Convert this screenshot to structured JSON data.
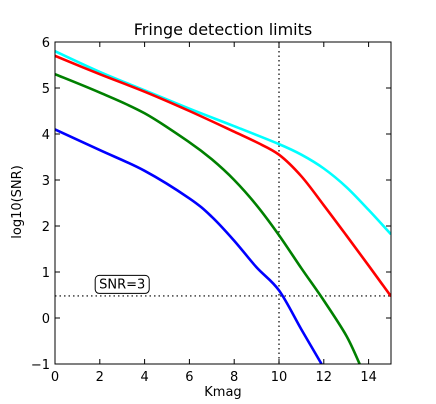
{
  "chart_data": {
    "type": "line",
    "title": "Fringe detection limits",
    "xlabel": "Kmag",
    "ylabel": "log10(SNR)",
    "xlim": [
      0,
      15
    ],
    "ylim": [
      -1,
      6
    ],
    "xticks": [
      0,
      2,
      4,
      6,
      8,
      10,
      12,
      14
    ],
    "yticks": [
      -1,
      0,
      1,
      2,
      3,
      4,
      5,
      6
    ],
    "grid": false,
    "series": [
      {
        "color": "#00ffff",
        "x": [
          0,
          2,
          4,
          6,
          8,
          10,
          11,
          12,
          13,
          14,
          15
        ],
        "y": [
          5.8,
          5.35,
          4.95,
          4.55,
          4.17,
          3.78,
          3.55,
          3.25,
          2.85,
          2.35,
          1.82
        ]
      },
      {
        "color": "#ff0000",
        "x": [
          0,
          2,
          4,
          6,
          8,
          9,
          10,
          11,
          12,
          13,
          14,
          15
        ],
        "y": [
          5.7,
          5.3,
          4.92,
          4.5,
          4.05,
          3.82,
          3.55,
          3.08,
          2.45,
          1.8,
          1.14,
          0.47
        ]
      },
      {
        "color": "#008000",
        "x": [
          0,
          2,
          4,
          6,
          7,
          8,
          9,
          10,
          11,
          12,
          13,
          13.6
        ],
        "y": [
          5.3,
          4.9,
          4.45,
          3.82,
          3.45,
          3.0,
          2.45,
          1.8,
          1.08,
          0.38,
          -0.38,
          -1.0
        ]
      },
      {
        "color": "#0000ff",
        "x": [
          0,
          2,
          4,
          6,
          7,
          8,
          9,
          10,
          11,
          11.9
        ],
        "y": [
          4.1,
          3.65,
          3.2,
          2.6,
          2.2,
          1.68,
          1.1,
          0.6,
          -0.25,
          -1.0
        ]
      }
    ],
    "reference_lines": [
      {
        "orientation": "vertical",
        "value": 10
      },
      {
        "orientation": "horizontal",
        "value": 0.48
      }
    ],
    "annotation": {
      "text": "SNR=3",
      "x": 3,
      "y": 0.6
    }
  }
}
